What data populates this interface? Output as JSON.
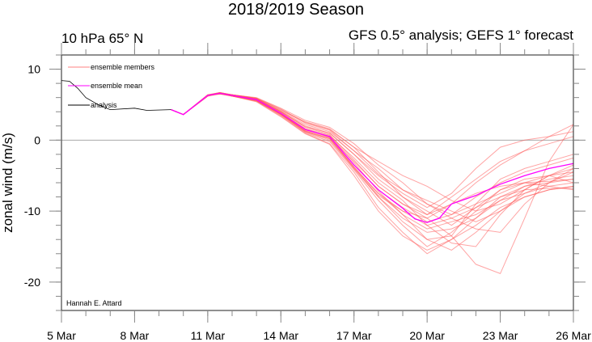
{
  "chart_data": {
    "type": "line",
    "title": "2018/2019 Season",
    "subtitle_left": "10 hPa 65° N",
    "subtitle_right": "GFS 0.5° analysis; GEFS 1° forecast",
    "xlabel": "",
    "ylabel": "zonal wind (m/s)",
    "credit": "Hannah E. Attard",
    "x_unit": "days since 5 Mar",
    "xlim": [
      0,
      21
    ],
    "ylim": [
      -24,
      12
    ],
    "x_ticks": [
      {
        "value": 0,
        "label": "5 Mar"
      },
      {
        "value": 3,
        "label": "8 Mar"
      },
      {
        "value": 6,
        "label": "11 Mar"
      },
      {
        "value": 9,
        "label": "14 Mar"
      },
      {
        "value": 12,
        "label": "17 Mar"
      },
      {
        "value": 15,
        "label": "20 Mar"
      },
      {
        "value": 18,
        "label": "23 Mar"
      },
      {
        "value": 21,
        "label": "26 Mar"
      }
    ],
    "x_minor_step": 1,
    "y_ticks": [
      {
        "value": 10,
        "label": "10"
      },
      {
        "value": 0,
        "label": "0"
      },
      {
        "value": -10,
        "label": "-10"
      },
      {
        "value": -20,
        "label": "-20"
      }
    ],
    "y_minor_step": 2,
    "zero_line": true,
    "legend": {
      "placement": "top-left",
      "entries": [
        {
          "label": "ensemble members",
          "color": "#ff8080"
        },
        {
          "label": "ensemble mean",
          "color": "#ff00ff"
        },
        {
          "label": "analysis",
          "color": "#000000"
        }
      ]
    },
    "analysis": {
      "name": "analysis",
      "color": "#000000",
      "x": [
        0,
        0.33,
        0.67,
        1.0,
        1.5,
        2.0,
        3.0,
        3.5,
        4.5
      ],
      "y": [
        8.4,
        8.3,
        7.3,
        6.0,
        5.0,
        4.3,
        4.5,
        4.2,
        4.3
      ]
    },
    "ensemble_mean": {
      "name": "ensemble mean",
      "color": "#ff00ff",
      "x": [
        4.5,
        5,
        6,
        6.5,
        7,
        8,
        9,
        10,
        11,
        12,
        13,
        14,
        14.5,
        15,
        15.5,
        16,
        17,
        18,
        19,
        20,
        21
      ],
      "y": [
        4.3,
        3.6,
        6.3,
        6.6,
        6.3,
        5.7,
        3.8,
        1.5,
        0.5,
        -3.5,
        -7.0,
        -9.6,
        -11.1,
        -11.6,
        -11.0,
        -9.0,
        -7.8,
        -6.2,
        -5.0,
        -4.0,
        -3.3
      ]
    },
    "ensemble_members": {
      "color": "#ff5a5a",
      "x": [
        4.5,
        5,
        6,
        6.5,
        7,
        8,
        9,
        10,
        11,
        12,
        13,
        14,
        15,
        16,
        17,
        18,
        19,
        20,
        21
      ],
      "series": [
        {
          "name": "member 1",
          "y": [
            4.3,
            3.6,
            6.3,
            6.6,
            6.4,
            5.9,
            4.2,
            2.5,
            1.5,
            -1.0,
            -4.5,
            -8.0,
            -10.5,
            -9.0,
            -6.0,
            -3.5,
            -1.5,
            0.5,
            2.2
          ]
        },
        {
          "name": "member 2",
          "y": [
            4.3,
            3.6,
            6.2,
            6.6,
            6.2,
            5.6,
            3.6,
            1.2,
            0.2,
            -4.0,
            -8.0,
            -11.5,
            -14.0,
            -13.5,
            -9.0,
            -5.5,
            -4.0,
            -3.0,
            -2.0
          ]
        },
        {
          "name": "member 3",
          "y": [
            4.3,
            3.6,
            6.3,
            6.7,
            6.3,
            5.5,
            3.4,
            1.0,
            -0.5,
            -4.5,
            -9.5,
            -13.0,
            -16.0,
            -14.0,
            -11.0,
            -8.0,
            -6.5,
            -6.0,
            -5.5
          ]
        },
        {
          "name": "member 4",
          "y": [
            4.3,
            3.6,
            6.3,
            6.6,
            6.4,
            6.0,
            4.5,
            2.8,
            1.8,
            -0.5,
            -3.5,
            -6.0,
            -9.0,
            -11.0,
            -12.5,
            -13.0,
            -9.0,
            -6.0,
            -4.5
          ]
        },
        {
          "name": "member 5",
          "y": [
            4.3,
            3.6,
            6.3,
            6.5,
            6.2,
            5.7,
            3.9,
            1.6,
            0.4,
            -3.0,
            -6.5,
            -9.0,
            -11.0,
            -13.5,
            -17.5,
            -18.8,
            -11.0,
            -3.0,
            2.2
          ]
        },
        {
          "name": "member 6",
          "y": [
            4.3,
            3.6,
            6.4,
            6.7,
            6.4,
            5.8,
            4.0,
            2.0,
            1.0,
            -2.0,
            -5.0,
            -7.5,
            -9.5,
            -7.5,
            -4.0,
            -1.0,
            0.0,
            0.5,
            1.2
          ]
        },
        {
          "name": "member 7",
          "y": [
            4.3,
            3.6,
            6.3,
            6.6,
            6.3,
            5.6,
            3.7,
            1.3,
            0.3,
            -3.8,
            -7.5,
            -10.5,
            -12.5,
            -11.5,
            -10.5,
            -8.5,
            -7.5,
            -6.5,
            -6.0
          ]
        },
        {
          "name": "member 8",
          "y": [
            4.3,
            3.6,
            6.2,
            6.5,
            6.2,
            5.5,
            3.5,
            1.1,
            -0.2,
            -4.2,
            -8.5,
            -12.0,
            -15.0,
            -13.0,
            -10.0,
            -7.0,
            -5.5,
            -5.0,
            -4.5
          ]
        },
        {
          "name": "member 9",
          "y": [
            4.3,
            3.6,
            6.3,
            6.6,
            6.4,
            5.8,
            4.1,
            2.2,
            1.2,
            -1.5,
            -4.0,
            -7.0,
            -8.5,
            -10.0,
            -11.5,
            -10.0,
            -8.0,
            -7.0,
            -6.5
          ]
        },
        {
          "name": "member 10",
          "y": [
            4.3,
            3.6,
            6.3,
            6.6,
            6.3,
            5.7,
            3.8,
            1.5,
            0.5,
            -3.5,
            -7.0,
            -9.5,
            -11.5,
            -10.5,
            -8.0,
            -6.0,
            -4.5,
            -3.5,
            -2.5
          ]
        },
        {
          "name": "member 11",
          "y": [
            4.3,
            3.6,
            6.4,
            6.6,
            6.3,
            5.6,
            3.6,
            1.4,
            0.6,
            -2.5,
            -6.0,
            -8.5,
            -12.0,
            -14.5,
            -15.0,
            -10.5,
            -7.0,
            -5.0,
            -4.0
          ]
        },
        {
          "name": "member 12",
          "y": [
            4.3,
            3.6,
            6.2,
            6.6,
            6.3,
            5.7,
            3.7,
            1.5,
            0.4,
            -3.8,
            -7.8,
            -10.0,
            -11.0,
            -9.0,
            -7.5,
            -6.5,
            -6.0,
            -5.8,
            -5.5
          ]
        },
        {
          "name": "member 13",
          "y": [
            4.3,
            3.6,
            6.3,
            6.7,
            6.4,
            5.9,
            4.3,
            2.6,
            1.6,
            -1.0,
            -3.0,
            -5.0,
            -6.5,
            -8.5,
            -10.0,
            -9.0,
            -7.0,
            -5.0,
            -3.5
          ]
        },
        {
          "name": "member 14",
          "y": [
            4.3,
            3.6,
            6.3,
            6.6,
            6.2,
            5.4,
            3.3,
            0.9,
            -0.6,
            -5.0,
            -10.0,
            -13.5,
            -15.5,
            -14.0,
            -12.0,
            -9.5,
            -8.0,
            -7.0,
            -6.5
          ]
        },
        {
          "name": "member 15",
          "y": [
            4.3,
            3.6,
            6.3,
            6.6,
            6.3,
            5.8,
            4.0,
            1.8,
            0.8,
            -2.8,
            -6.5,
            -9.0,
            -10.5,
            -8.0,
            -5.5,
            -3.0,
            -1.5,
            -0.5,
            0.5
          ]
        },
        {
          "name": "member 16",
          "y": [
            4.3,
            3.6,
            6.3,
            6.5,
            6.3,
            5.6,
            3.6,
            1.2,
            0.0,
            -4.0,
            -8.0,
            -11.0,
            -13.0,
            -12.5,
            -11.0,
            -8.5,
            -6.5,
            -5.5,
            -5.0
          ]
        },
        {
          "name": "member 17",
          "y": [
            4.3,
            3.6,
            6.4,
            6.7,
            6.4,
            5.8,
            4.0,
            1.9,
            1.0,
            -2.0,
            -5.5,
            -8.0,
            -10.0,
            -12.0,
            -9.5,
            -7.0,
            -6.0,
            -6.5,
            -7.0
          ]
        },
        {
          "name": "member 18",
          "y": [
            4.3,
            3.6,
            6.3,
            6.6,
            6.3,
            5.7,
            3.8,
            1.6,
            0.7,
            -3.2,
            -7.2,
            -10.5,
            -14.0,
            -15.5,
            -13.0,
            -10.0,
            -7.5,
            -6.0,
            -4.0
          ]
        },
        {
          "name": "member 19",
          "y": [
            4.3,
            3.6,
            6.3,
            6.6,
            6.4,
            5.9,
            4.4,
            2.4,
            1.4,
            -1.5,
            -4.8,
            -7.0,
            -9.0,
            -10.5,
            -9.0,
            -7.5,
            -6.0,
            -5.0,
            -6.0
          ]
        },
        {
          "name": "member 20",
          "y": [
            4.3,
            3.6,
            6.3,
            6.6,
            6.2,
            5.6,
            3.7,
            1.3,
            0.2,
            -3.8,
            -7.5,
            -10.0,
            -12.0,
            -11.0,
            -9.5,
            -8.0,
            -7.0,
            -6.8,
            -6.8
          ]
        }
      ]
    }
  }
}
